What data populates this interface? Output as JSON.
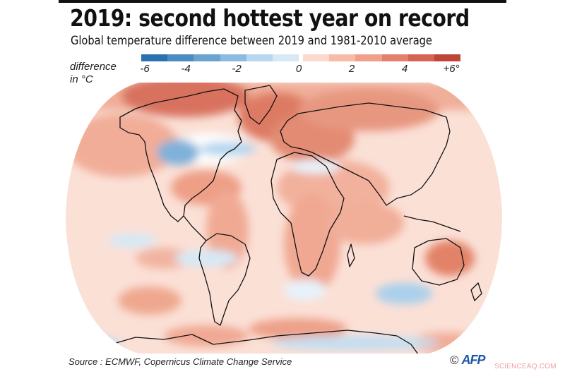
{
  "header": {
    "title": "2019: second hottest year on record",
    "subtitle": "Global temperature difference between 2019 and 1981-2010 average"
  },
  "legend": {
    "label_line1": "difference",
    "label_line2": "in °C",
    "ticks": [
      "-6",
      "-4",
      "-2",
      "0",
      "2",
      "4",
      "+6°"
    ],
    "negative_colors": [
      "#2b71b0",
      "#4a8bc2",
      "#6aa3d0",
      "#8dbbdf",
      "#b6d7ee",
      "#d8e9f6"
    ],
    "positive_colors": [
      "#fbd9cd",
      "#f7bba7",
      "#f0a08a",
      "#e5816b",
      "#d56552",
      "#bf4538"
    ]
  },
  "map": {
    "projection": "Robinson-like world map",
    "description": "Global surface temperature anomaly 2019 vs 1981-2010, mostly warm (red) with cool (blue) areas over central North America, parts of the Southern Ocean and south of Australia",
    "land_outline_color": "#111111",
    "ocean_base_color": "#fbe0d6"
  },
  "footer": {
    "source": "Source : ECMWF, Copernicus Climate Change Service",
    "copyright": "©",
    "agency": "AFP",
    "watermark": "SCIENCEAQ.COM"
  }
}
